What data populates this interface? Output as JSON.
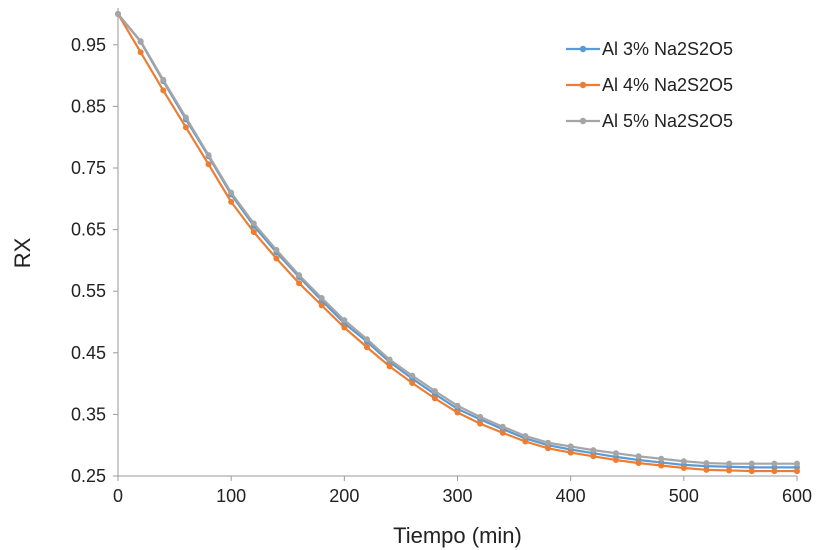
{
  "chart_data": {
    "type": "line",
    "title": "",
    "xlabel": "Tiempo (min)",
    "ylabel": "RX",
    "xlim": [
      0,
      600
    ],
    "ylim": [
      0.25,
      1.0
    ],
    "xticks": [
      0,
      100,
      200,
      300,
      400,
      500,
      600
    ],
    "yticks": [
      0.25,
      0.35,
      0.45,
      0.55,
      0.65,
      0.75,
      0.85,
      0.95
    ],
    "ytick_labels": [
      "0.25",
      "0.35",
      "0.45",
      "0.55",
      "0.65",
      "0.75",
      "0.85",
      "0.95"
    ],
    "xtick_labels": [
      "0",
      "100",
      "200",
      "300",
      "400",
      "500",
      "600"
    ],
    "grid": false,
    "legend_position": "top-right",
    "x": [
      0,
      20,
      40,
      60,
      80,
      100,
      120,
      140,
      160,
      180,
      200,
      220,
      240,
      260,
      280,
      300,
      320,
      340,
      360,
      380,
      400,
      420,
      440,
      460,
      480,
      500,
      520,
      540,
      560,
      580,
      600
    ],
    "series": [
      {
        "name": "Al 3% Na2S2O5",
        "color": "#5b9bd5",
        "values": [
          1.0,
          0.955,
          0.891,
          0.829,
          0.769,
          0.707,
          0.656,
          0.613,
          0.573,
          0.535,
          0.498,
          0.468,
          0.435,
          0.408,
          0.383,
          0.359,
          0.342,
          0.326,
          0.311,
          0.3,
          0.293,
          0.287,
          0.281,
          0.276,
          0.272,
          0.268,
          0.266,
          0.265,
          0.264,
          0.264,
          0.264
        ]
      },
      {
        "name": "Al 4% Na2S2O5",
        "color": "#ed7d31",
        "values": [
          1.0,
          0.938,
          0.876,
          0.816,
          0.756,
          0.695,
          0.646,
          0.603,
          0.563,
          0.527,
          0.491,
          0.459,
          0.428,
          0.401,
          0.376,
          0.353,
          0.335,
          0.32,
          0.306,
          0.295,
          0.288,
          0.282,
          0.276,
          0.271,
          0.267,
          0.263,
          0.26,
          0.259,
          0.258,
          0.258,
          0.258
        ]
      },
      {
        "name": "Al 5% Na2S2O5",
        "color": "#a5a5a5",
        "values": [
          1.0,
          0.956,
          0.893,
          0.832,
          0.771,
          0.71,
          0.66,
          0.617,
          0.576,
          0.539,
          0.503,
          0.472,
          0.439,
          0.413,
          0.388,
          0.364,
          0.346,
          0.33,
          0.315,
          0.304,
          0.298,
          0.292,
          0.287,
          0.282,
          0.278,
          0.274,
          0.271,
          0.27,
          0.27,
          0.27,
          0.27
        ]
      }
    ]
  }
}
